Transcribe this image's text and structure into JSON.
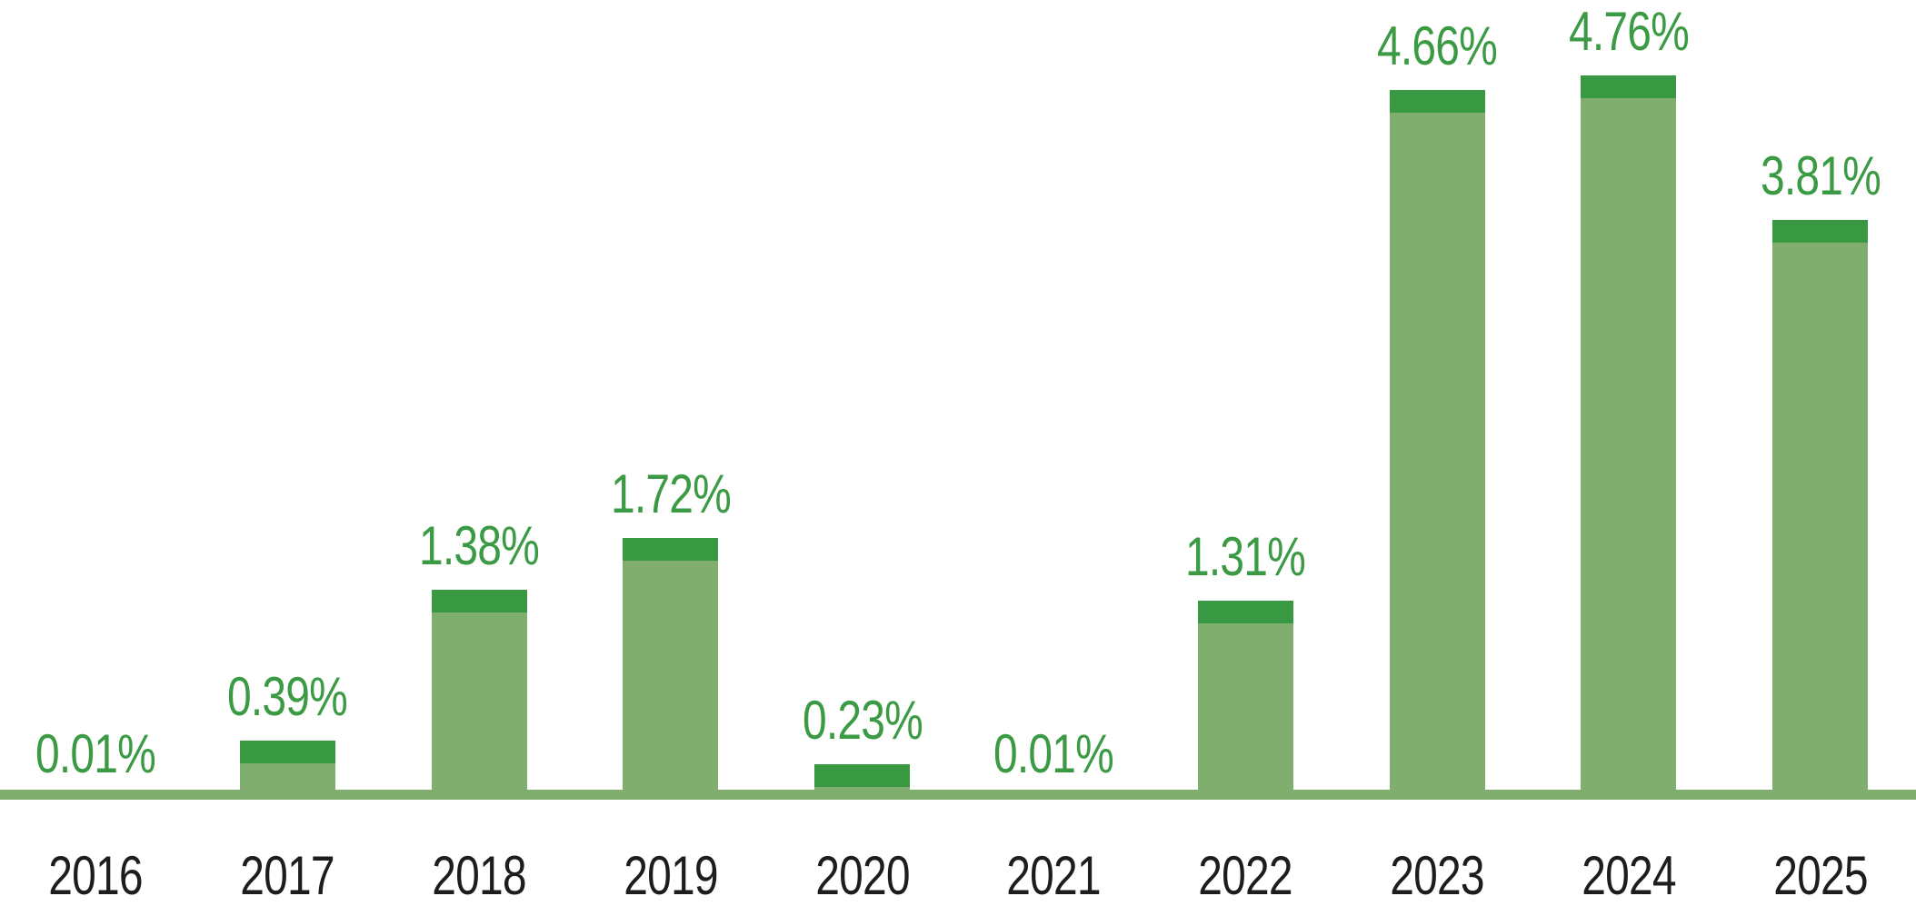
{
  "chart": {
    "background": "#ffffff",
    "colors": {
      "bar_body": "#80ae6e",
      "bar_cap": "#399943",
      "value_label": "#3b9a44",
      "year_label": "#1d1d1b",
      "baseline": "#80ae6e"
    }
  },
  "chart_data": {
    "type": "bar",
    "title": "",
    "xlabel": "",
    "ylabel": "",
    "categories": [
      "2016",
      "2017",
      "2018",
      "2019",
      "2020",
      "2021",
      "2022",
      "2023",
      "2024",
      "2025"
    ],
    "values": [
      0.01,
      0.39,
      1.38,
      1.72,
      0.23,
      0.01,
      1.31,
      4.66,
      4.76,
      3.81
    ],
    "value_labels": [
      "0.01%",
      "0.39%",
      "1.38%",
      "1.72%",
      "0.23%",
      "0.01%",
      "1.31%",
      "4.66%",
      "4.76%",
      "3.81%"
    ],
    "unit": "%",
    "ylim": [
      0,
      5
    ],
    "grid": false,
    "legend": "none",
    "axes": "no y-axis; x-axis rendered as a solid light-green baseline strip with year tick labels below",
    "bar_style": "light green bar body with a short dark-green cap segment at the top of each bar; green value labels above bars"
  }
}
